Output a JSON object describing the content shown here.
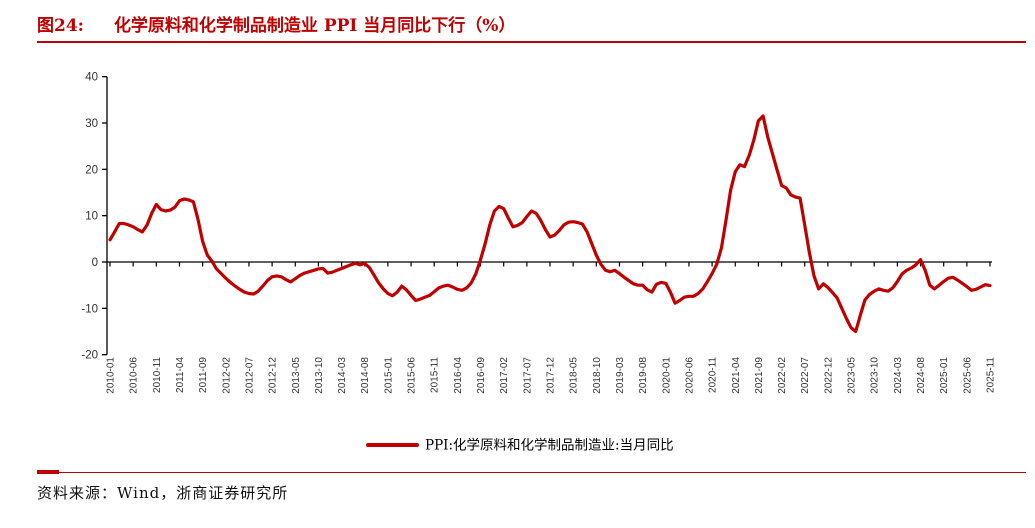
{
  "header": {
    "figure_label": "图24:",
    "title": "化学原料和化学制品制造业 PPI 当月同比下行（%）",
    "accent_color": "#c00000"
  },
  "footer": {
    "source": "资料来源：Wind，浙商证券研究所"
  },
  "chart_data": {
    "type": "line",
    "title": "化学原料和化学制品制造业 PPI 当月同比下行（%）",
    "xlabel": "",
    "ylabel": "",
    "unit": "%",
    "x_start": "2010-01",
    "x_end": "2025-11",
    "x_frequency": "monthly",
    "x_tick_step_months": 5,
    "x_tick_labels": [
      "2010-01",
      "2010-06",
      "2010-11",
      "2011-04",
      "2011-09",
      "2012-02",
      "2012-07",
      "2012-12",
      "2013-05",
      "2013-10",
      "2014-03",
      "2014-08",
      "2015-01",
      "2015-06",
      "2015-11",
      "2016-04",
      "2016-09",
      "2017-02",
      "2017-07",
      "2017-12",
      "2018-05",
      "2018-10",
      "2019-03",
      "2019-08",
      "2020-01",
      "2020-06",
      "2020-11",
      "2021-04",
      "2021-09",
      "2022-02",
      "2022-07",
      "2022-12",
      "2023-05",
      "2023-10",
      "2024-03",
      "2024-08",
      "2025-01",
      "2025-06",
      "2025-11"
    ],
    "ylim": [
      -20,
      40
    ],
    "y_ticks": [
      40,
      30,
      20,
      10,
      0,
      -10,
      -20
    ],
    "grid": false,
    "legend_position": "bottom-center",
    "line_color": "#c00000",
    "axis_color": "#000000",
    "series": [
      {
        "name": "PPI:化学原料和化学制品制造业:当月同比",
        "color": "#c00000",
        "values": [
          4.8,
          6.5,
          8.3,
          8.3,
          8.0,
          7.6,
          7.0,
          6.5,
          8.0,
          10.5,
          12.4,
          11.3,
          11.0,
          11.2,
          11.8,
          13.2,
          13.6,
          13.4,
          13.0,
          9.2,
          4.5,
          1.5,
          0.2,
          -1.5,
          -2.5,
          -3.5,
          -4.4,
          -5.2,
          -5.9,
          -6.5,
          -6.8,
          -6.9,
          -6.3,
          -5.2,
          -4.0,
          -3.2,
          -3.0,
          -3.2,
          -3.8,
          -4.3,
          -3.6,
          -2.9,
          -2.4,
          -2.1,
          -1.8,
          -1.5,
          -1.4,
          -2.4,
          -2.2,
          -1.8,
          -1.4,
          -1.0,
          -0.6,
          -0.3,
          -0.6,
          -0.3,
          -1.2,
          -2.8,
          -4.5,
          -5.8,
          -6.8,
          -7.3,
          -6.5,
          -5.2,
          -6.0,
          -7.2,
          -8.3,
          -8.0,
          -7.6,
          -7.2,
          -6.4,
          -5.6,
          -5.2,
          -5.0,
          -5.4,
          -5.9,
          -6.1,
          -5.6,
          -4.5,
          -2.5,
          0.5,
          4.0,
          8.0,
          11.0,
          12.0,
          11.5,
          9.5,
          7.6,
          7.9,
          8.5,
          9.8,
          11.0,
          10.5,
          9.0,
          7.0,
          5.4,
          5.8,
          6.8,
          8.0,
          8.6,
          8.7,
          8.5,
          8.2,
          6.5,
          4.0,
          1.5,
          -0.5,
          -1.8,
          -2.1,
          -1.8,
          -2.5,
          -3.3,
          -4.0,
          -4.7,
          -5.0,
          -5.0,
          -6.0,
          -6.5,
          -4.8,
          -4.4,
          -4.6,
          -6.5,
          -8.9,
          -8.3,
          -7.6,
          -7.4,
          -7.4,
          -6.8,
          -5.8,
          -4.2,
          -2.5,
          -0.5,
          3.0,
          9.0,
          15.5,
          19.5,
          21.0,
          20.6,
          23.0,
          26.3,
          30.5,
          31.5,
          27.0,
          23.5,
          20.0,
          16.5,
          16.0,
          14.5,
          14.0,
          13.8,
          8.0,
          2.0,
          -3.0,
          -5.8,
          -4.7,
          -5.5,
          -6.6,
          -7.8,
          -10.0,
          -12.2,
          -14.2,
          -15.0,
          -11.5,
          -8.2,
          -7.0,
          -6.3,
          -5.8,
          -6.1,
          -6.3,
          -5.6,
          -4.2,
          -2.6,
          -1.8,
          -1.3,
          -0.6,
          0.5,
          -1.8,
          -5.0,
          -5.8,
          -5.0,
          -4.2,
          -3.5,
          -3.3,
          -3.9,
          -4.6,
          -5.3,
          -6.1,
          -5.9,
          -5.4,
          -4.9,
          -5.1
        ]
      }
    ]
  }
}
